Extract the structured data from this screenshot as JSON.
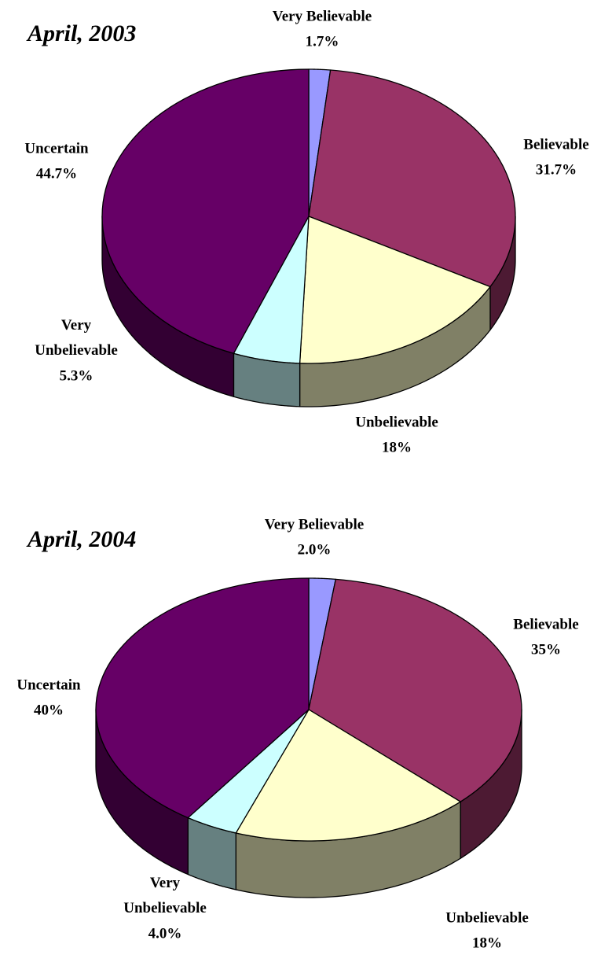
{
  "chart_data": [
    {
      "type": "pie",
      "title": "April, 2003",
      "categories": [
        "Very Believable",
        "Believable",
        "Unbelievable",
        "Very Unbelievable",
        "Uncertain"
      ],
      "values": [
        1.7,
        31.7,
        18,
        5.3,
        44.7
      ],
      "value_labels": [
        "1.7%",
        "31.7%",
        "18%",
        "5.3%",
        "44.7%"
      ],
      "colors": [
        "#9999ff",
        "#993366",
        "#ffffcc",
        "#ccffff",
        "#660066"
      ]
    },
    {
      "type": "pie",
      "title": "April, 2004",
      "categories": [
        "Very Believable",
        "Believable",
        "Unbelievable",
        "Very Unbelievable",
        "Uncertain"
      ],
      "values": [
        2.0,
        35,
        18,
        4.0,
        40
      ],
      "value_labels": [
        "2.0%",
        "35%",
        "18%",
        "4.0%",
        "40%"
      ],
      "colors": [
        "#9999ff",
        "#993366",
        "#ffffcc",
        "#ccffff",
        "#660066"
      ]
    }
  ]
}
